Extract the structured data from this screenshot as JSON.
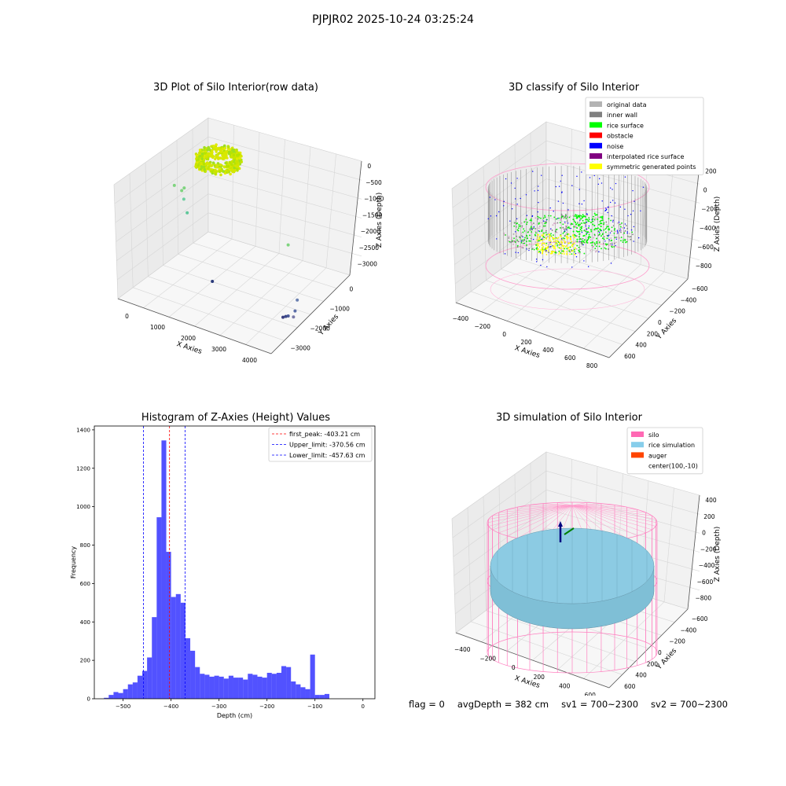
{
  "suptitle": "PJPJR02 2025-10-24 03:25:24",
  "status": {
    "flag": "flag = 0",
    "avg_depth": "avgDepth = 382 cm",
    "sv1": "sv1 = 700~2300",
    "sv2": "sv2 = 700~2300"
  },
  "chart_data": [
    {
      "type": "scatter",
      "title": "3D Plot of Silo Interior(row data)",
      "xlabel": "X Axies",
      "ylabel": "Y Axies",
      "zlabel": "Z Axies (Depth)",
      "x_ticks": [
        "0",
        "1000",
        "2000",
        "3000",
        "4000"
      ],
      "y_ticks": [
        "0",
        "−1000",
        "−2000",
        "−3000"
      ],
      "z_ticks": [
        "0",
        "−500",
        "−1000",
        "−1500",
        "−2000",
        "−2500",
        "−3000"
      ],
      "outliers": [
        {
          "x": 200,
          "y": -700,
          "z": -650,
          "color": "#7fd47f"
        },
        {
          "x": 450,
          "y": -600,
          "z": -700,
          "color": "#7fd47f"
        },
        {
          "x": 550,
          "y": -400,
          "z": -600,
          "color": "#7fd47f"
        },
        {
          "x": 500,
          "y": -800,
          "z": -900,
          "color": "#6fcfa0"
        },
        {
          "x": 600,
          "y": -900,
          "z": -1200,
          "color": "#5fc79a"
        },
        {
          "x": 4000,
          "y": 200,
          "z": -1000,
          "color": "#7fd47f"
        },
        {
          "x": 4200,
          "y": -800,
          "z": -2300,
          "color": "#6a7fb0"
        },
        {
          "x": 4100,
          "y": -1100,
          "z": -2600,
          "color": "#5b6ea8"
        },
        {
          "x": 4000,
          "y": -1600,
          "z": -2800,
          "color": "#7a7aa8"
        },
        {
          "x": 3800,
          "y": -1900,
          "z": -2850,
          "color": "#4a5a9a"
        },
        {
          "x": 3700,
          "y": -2100,
          "z": -2900,
          "color": "#3d4a8a"
        },
        {
          "x": 3600,
          "y": -2200,
          "z": -2950,
          "color": "#3a3f80"
        },
        {
          "x": 1200,
          "y": -3200,
          "z": -2800,
          "color": "#2a3a7a"
        }
      ]
    },
    {
      "type": "scatter",
      "title": "3D classify of Silo Interior",
      "xlabel": "X Axies",
      "ylabel": "Y Axies",
      "zlabel": "Z Axies (Depth)",
      "x_ticks": [
        "−400",
        "−200",
        "0",
        "200",
        "400",
        "600",
        "800"
      ],
      "y_ticks": [
        "−600",
        "−400",
        "−200",
        "0",
        "200",
        "400",
        "600"
      ],
      "z_ticks": [
        "200",
        "0",
        "−200",
        "−400",
        "−600",
        "−800"
      ],
      "legend": [
        {
          "label": "original data",
          "color": "#b3b3b3"
        },
        {
          "label": "inner wall",
          "color": "#808080"
        },
        {
          "label": "rice surface",
          "color": "#00ff00"
        },
        {
          "label": "obstacle",
          "color": "#ff0000"
        },
        {
          "label": "noise",
          "color": "#0000ff"
        },
        {
          "label": "interpolated rice surface",
          "color": "#800080"
        },
        {
          "label": "symmetric generated points",
          "color": "#ffff00"
        }
      ]
    },
    {
      "type": "bar",
      "title": "Histogram of Z-Axies (Height) Values",
      "xlabel": "Depth (cm)",
      "ylabel": "Frequency",
      "xlim": [
        -560,
        25
      ],
      "ylim": [
        0,
        1420
      ],
      "x_ticks": [
        -500,
        -400,
        -300,
        -200,
        -100,
        0
      ],
      "y_ticks": [
        0,
        200,
        400,
        600,
        800,
        1000,
        1200,
        1400
      ],
      "bin_start": -540,
      "bin_width": 10,
      "values": [
        5,
        20,
        35,
        30,
        50,
        75,
        85,
        120,
        145,
        215,
        425,
        945,
        1345,
        765,
        530,
        545,
        500,
        315,
        250,
        165,
        130,
        125,
        115,
        120,
        115,
        105,
        120,
        110,
        110,
        100,
        130,
        125,
        115,
        110,
        135,
        130,
        135,
        170,
        165,
        90,
        75,
        60,
        50,
        230,
        20,
        20,
        25
      ],
      "bar_color": "#0000ff",
      "lines": [
        {
          "label": "first_peak: -403.21 cm",
          "x": -403.21,
          "color": "#ff0000"
        },
        {
          "label": "Upper_limit: -370.56 cm",
          "x": -370.56,
          "color": "#0000ff"
        },
        {
          "label": "Lower_limit: -457.63 cm",
          "x": -457.63,
          "color": "#0000ff"
        }
      ]
    },
    {
      "type": "scatter",
      "title": "3D simulation of Silo Interior",
      "xlabel": "X Axies",
      "ylabel": "Y Axies",
      "zlabel": "Z Axies (Depth)",
      "x_ticks": [
        "−400",
        "−200",
        "0",
        "200",
        "400",
        "600"
      ],
      "y_ticks": [
        "−600",
        "−400",
        "−200",
        "0",
        "200",
        "400",
        "600"
      ],
      "z_ticks": [
        "400",
        "200",
        "0",
        "−200",
        "−400",
        "−600",
        "−800"
      ],
      "legend": [
        {
          "label": "silo",
          "color": "#ff69b4"
        },
        {
          "label": "rice simulation",
          "color": "#87ceeb"
        },
        {
          "label": "auger",
          "color": "#ff4500"
        },
        {
          "label": "center(100,-10)",
          "color": ""
        }
      ]
    }
  ]
}
